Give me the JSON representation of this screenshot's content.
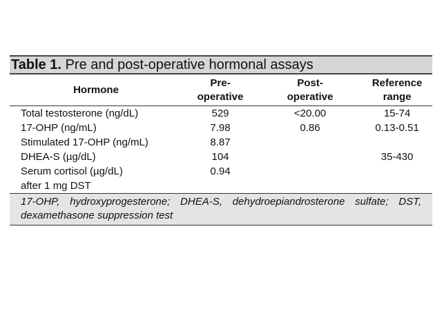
{
  "table": {
    "title": {
      "label": "Table 1.",
      "text": "Pre and post-operative hormonal assays"
    },
    "header": {
      "hormone": [
        "Hormone"
      ],
      "pre": [
        "Pre-",
        "operative"
      ],
      "post": [
        "Post-",
        "operative"
      ],
      "ref": [
        "Reference",
        "range"
      ]
    },
    "rows": [
      {
        "label": [
          "Total testosterone (ng/dL)"
        ],
        "pre": "529",
        "post": "<20.00",
        "ref": "15-74"
      },
      {
        "label": [
          "17-OHP (ng/mL)"
        ],
        "pre": "7.98",
        "post": "0.86",
        "ref": "0.13-0.51"
      },
      {
        "label": [
          "Stimulated 17-OHP (ng/mL)"
        ],
        "pre": "8.87"
      },
      {
        "label": [
          "DHEA-S (µg/dL)"
        ],
        "pre": "104",
        "ref": "35-430"
      },
      {
        "label": [
          "Serum cortisol (µg/dL)",
          "after 1 mg DST"
        ],
        "pre": "0.94"
      }
    ],
    "footnote": "17-OHP, hydroxyprogesterone; DHEA-S, dehydroepiandrosterone sulfate; DST, dexamethasone suppression test"
  }
}
